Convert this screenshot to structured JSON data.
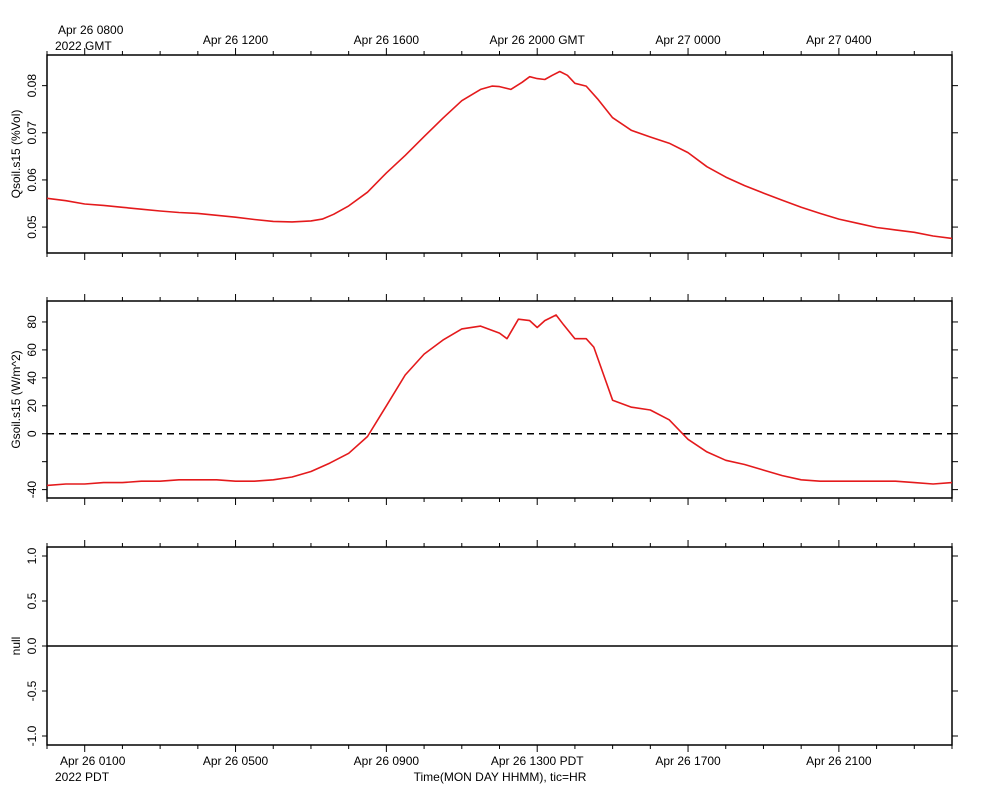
{
  "top_axis": {
    "start_label": "Apr 26 0800",
    "zone_label": "2022 GMT",
    "ticks": [
      "Apr 26 1200",
      "Apr 26 1600",
      "Apr 26 2000 GMT",
      "Apr 27 0000",
      "Apr 27 0400"
    ]
  },
  "bottom_axis": {
    "zone_label": "2022 PDT",
    "ticks": [
      "Apr 26 0100",
      "Apr 26 0500",
      "Apr 26 0900",
      "Apr 26 1300 PDT",
      "Apr 26 1700",
      "Apr 26 2100"
    ],
    "caption": "Time(MON DAY HHMM), tic=HR"
  },
  "colors": {
    "series": "#e41a1c",
    "axes": "#000000",
    "reference_line": "#000000"
  },
  "chart_data": [
    {
      "type": "line",
      "ylabel": "Qsoil.s15 (%Vol)",
      "x_units": "hours since Apr 26 0000 PDT",
      "xlim": [
        0,
        24
      ],
      "ylim": [
        0.0445,
        0.0865
      ],
      "yticks": [
        0.05,
        0.06,
        0.07,
        0.08
      ],
      "ytick_labels": [
        "0.05",
        "0.06",
        "0.07",
        "0.08"
      ],
      "series": [
        {
          "color": "#e41a1c",
          "x": [
            0,
            0.5,
            1,
            1.5,
            2,
            2.5,
            3,
            3.5,
            4,
            4.5,
            5,
            5.5,
            6,
            6.5,
            7,
            7.3,
            7.6,
            8,
            8.5,
            9,
            9.5,
            10,
            10.5,
            11,
            11.5,
            11.8,
            12,
            12.3,
            12.6,
            12.8,
            13,
            13.2,
            13.4,
            13.6,
            13.8,
            14,
            14.3,
            14.6,
            15,
            15.5,
            16,
            16.5,
            17,
            17.5,
            18,
            18.5,
            19,
            19.5,
            20,
            20.5,
            21,
            21.5,
            22,
            22.5,
            23,
            23.5,
            24
          ],
          "values": [
            0.0561,
            0.0556,
            0.0549,
            0.0546,
            0.0542,
            0.0538,
            0.0534,
            0.0531,
            0.0529,
            0.0525,
            0.0521,
            0.0516,
            0.0512,
            0.0511,
            0.0513,
            0.0517,
            0.0527,
            0.0545,
            0.0574,
            0.0615,
            0.0652,
            0.0692,
            0.0731,
            0.0768,
            0.0792,
            0.0799,
            0.0798,
            0.0792,
            0.0807,
            0.0819,
            0.0815,
            0.0813,
            0.0822,
            0.083,
            0.0822,
            0.0805,
            0.0799,
            0.0772,
            0.0732,
            0.0705,
            0.0691,
            0.0678,
            0.0658,
            0.0628,
            0.0606,
            0.0588,
            0.0572,
            0.0557,
            0.0542,
            0.0529,
            0.0517,
            0.0508,
            0.0499,
            0.0494,
            0.0489,
            0.0481,
            0.0476
          ]
        }
      ]
    },
    {
      "type": "line",
      "ylabel": "Gsoil.s15 (W/m^2)",
      "x_units": "hours since Apr 26 0000 PDT",
      "xlim": [
        0,
        24
      ],
      "ylim": [
        -46,
        95
      ],
      "yticks": [
        -40,
        -20,
        0,
        20,
        40,
        60,
        80
      ],
      "ytick_labels": [
        "-40",
        "",
        "0",
        "20",
        "40",
        "60",
        "80"
      ],
      "reference_line": {
        "y": 0,
        "style": "dashed"
      },
      "series": [
        {
          "color": "#e41a1c",
          "x": [
            0,
            0.5,
            1,
            1.5,
            2,
            2.5,
            3,
            3.5,
            4,
            4.5,
            5,
            5.5,
            6,
            6.5,
            7,
            7.5,
            8,
            8.5,
            9,
            9.5,
            10,
            10.5,
            11,
            11.5,
            12,
            12.2,
            12.5,
            12.8,
            13,
            13.2,
            13.5,
            13.7,
            14,
            14.3,
            14.5,
            15,
            15.5,
            16,
            16.5,
            17,
            17.5,
            18,
            18.5,
            19,
            19.5,
            20,
            20.5,
            21,
            21.5,
            22,
            22.5,
            23,
            23.5,
            24
          ],
          "values": [
            -37,
            -36,
            -36,
            -35,
            -35,
            -34,
            -34,
            -33,
            -33,
            -33,
            -34,
            -34,
            -33,
            -31,
            -27,
            -21,
            -14,
            -2,
            20,
            42,
            57,
            67,
            75,
            77,
            72,
            68,
            82,
            81,
            76,
            81,
            85,
            78,
            68,
            68,
            62,
            24,
            19,
            17,
            10,
            -4,
            -13,
            -19,
            -22,
            -26,
            -30,
            -33,
            -34,
            -34,
            -34,
            -34,
            -34,
            -35,
            -36,
            -35
          ]
        }
      ]
    },
    {
      "type": "line",
      "ylabel": "null",
      "x_units": "hours since Apr 26 0000 PDT",
      "xlim": [
        0,
        24
      ],
      "ylim": [
        -1.1,
        1.1
      ],
      "yticks": [
        -1.0,
        -0.5,
        0.0,
        0.5,
        1.0
      ],
      "ytick_labels": [
        "-1.0",
        "-0.5",
        "0.0",
        "0.5",
        "1.0"
      ],
      "series": [
        {
          "color": "#000000",
          "x": [
            0,
            24
          ],
          "values": [
            0,
            0
          ]
        }
      ]
    }
  ]
}
